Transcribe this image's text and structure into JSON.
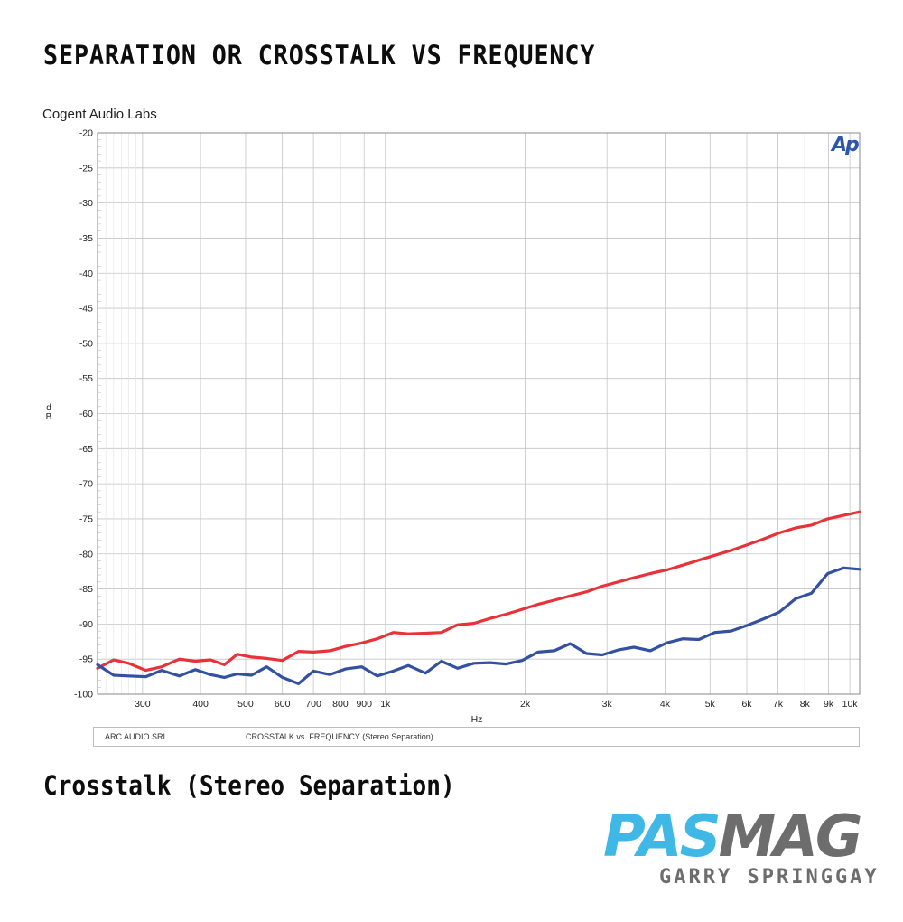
{
  "heading": "SEPARATION OR CROSSTALK VS FREQUENCY",
  "company": "Cogent Audio Labs",
  "caption": "Crosstalk (Stereo Separation)",
  "logo": {
    "part1": "PAS",
    "part2": "MAG",
    "subtitle": "GARRY SPRINGGAY",
    "color1": "#3fb8e6",
    "color2": "#6d6d6d"
  },
  "ap_mark": "Ap",
  "ap_color": "#2e56a8",
  "legend": {
    "left": "ARC AUDIO  SRI",
    "right": "CROSSTALK vs. FREQUENCY  (Stereo Separation)"
  },
  "chart_data": {
    "type": "line",
    "xscale": "log",
    "xlim": [
      240,
      10500
    ],
    "ylim": [
      -100,
      -20
    ],
    "xlabel": "Hz",
    "ylabel": "d B",
    "grid": true,
    "ytick_values": [
      -20,
      -25,
      -30,
      -35,
      -40,
      -45,
      -50,
      -55,
      -60,
      -65,
      -70,
      -75,
      -80,
      -85,
      -90,
      -95,
      -100
    ],
    "ytick_labels": [
      "-20",
      "-25",
      "-30",
      "-35",
      "-40",
      "-45",
      "-50",
      "-55",
      "-60",
      "-65",
      "-70",
      "-75",
      "-80",
      "-85",
      "-90",
      "-95",
      "-100"
    ],
    "xtick_values": [
      300,
      400,
      500,
      600,
      700,
      800,
      900,
      1000,
      2000,
      3000,
      4000,
      5000,
      6000,
      7000,
      8000,
      9000,
      10000
    ],
    "xtick_labels": [
      "300",
      "400",
      "500",
      "600",
      "700",
      "800",
      "900",
      "1k",
      "2k",
      "3k",
      "4k",
      "5k",
      "6k",
      "7k",
      "8k",
      "9k",
      "10k"
    ],
    "series": [
      {
        "color": "#e8323a",
        "x": [
          240,
          260,
          280,
          305,
          330,
          360,
          390,
          420,
          450,
          480,
          515,
          555,
          600,
          650,
          700,
          760,
          820,
          890,
          960,
          1040,
          1120,
          1220,
          1320,
          1430,
          1550,
          1680,
          1820,
          1970,
          2130,
          2310,
          2500,
          2710,
          2930,
          3170,
          3430,
          3720,
          4030,
          4370,
          4730,
          5120,
          5550,
          6010,
          6510,
          7050,
          7640,
          8270,
          8960,
          9700,
          10500
        ],
        "y": [
          -96.3,
          -95.1,
          -95.6,
          -96.6,
          -96.1,
          -95.0,
          -95.3,
          -95.1,
          -95.8,
          -94.3,
          -94.7,
          -94.9,
          -95.2,
          -93.9,
          -94.0,
          -93.8,
          -93.2,
          -92.7,
          -92.1,
          -91.2,
          -91.4,
          -91.3,
          -91.2,
          -90.1,
          -89.9,
          -89.2,
          -88.6,
          -87.9,
          -87.2,
          -86.6,
          -86.0,
          -85.4,
          -84.6,
          -84.0,
          -83.4,
          -82.8,
          -82.3,
          -81.6,
          -80.9,
          -80.2,
          -79.5,
          -78.7,
          -77.9,
          -77.0,
          -76.3,
          -75.9,
          -75.0,
          -74.5,
          -74.0
        ]
      },
      {
        "color": "#3450a0",
        "x": [
          240,
          260,
          280,
          305,
          330,
          360,
          390,
          420,
          450,
          480,
          515,
          555,
          600,
          650,
          700,
          760,
          820,
          890,
          960,
          1040,
          1120,
          1220,
          1320,
          1430,
          1550,
          1680,
          1820,
          1970,
          2130,
          2310,
          2500,
          2710,
          2930,
          3170,
          3430,
          3720,
          4030,
          4370,
          4730,
          5120,
          5550,
          6010,
          6510,
          7050,
          7640,
          8270,
          8960,
          9700,
          10500
        ],
        "y": [
          -95.8,
          -97.3,
          -97.4,
          -97.5,
          -96.6,
          -97.4,
          -96.5,
          -97.2,
          -97.6,
          -97.1,
          -97.3,
          -96.1,
          -97.6,
          -98.5,
          -96.7,
          -97.2,
          -96.4,
          -96.1,
          -97.4,
          -96.7,
          -95.9,
          -97.0,
          -95.3,
          -96.3,
          -95.6,
          -95.5,
          -95.7,
          -95.2,
          -94.0,
          -93.8,
          -92.8,
          -94.2,
          -94.4,
          -93.7,
          -93.3,
          -93.8,
          -92.7,
          -92.1,
          -92.2,
          -91.2,
          -91.0,
          -90.2,
          -89.3,
          -88.3,
          -86.4,
          -85.6,
          -82.8,
          -82.0,
          -82.2
        ]
      }
    ]
  }
}
